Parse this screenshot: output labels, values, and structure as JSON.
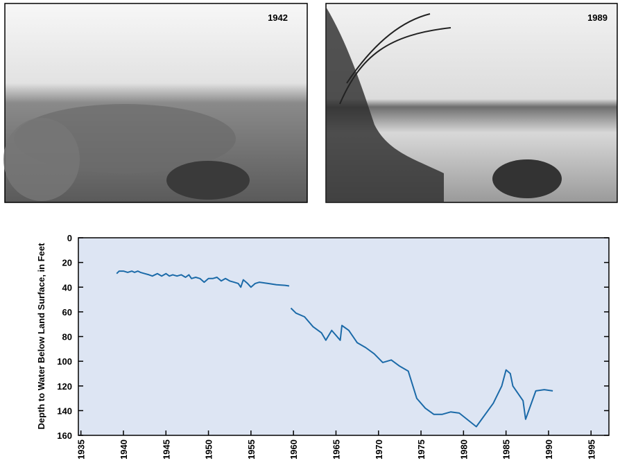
{
  "photos": [
    {
      "label": "1942"
    },
    {
      "label": "1989"
    }
  ],
  "chart_data": {
    "type": "line",
    "y_axis_label": "Depth to Water Below Land Surface, in Feet",
    "y_inverted": true,
    "xlim": [
      1934.7,
      1997.1
    ],
    "xticks": [
      1935,
      1940,
      1945,
      1950,
      1955,
      1960,
      1965,
      1970,
      1975,
      1980,
      1985,
      1990,
      1995
    ],
    "ylim": [
      0,
      160
    ],
    "yticks": [
      0,
      20,
      40,
      60,
      80,
      100,
      120,
      140,
      160
    ],
    "background": "#dde5f3",
    "series": [
      {
        "color": "#1b6aa8",
        "x": [
          1939.2,
          1939.5,
          1940,
          1940.5,
          1941,
          1941.3,
          1941.7,
          1942,
          1942.5,
          1943,
          1943.4,
          1944,
          1944.5,
          1945,
          1945.4,
          1945.8,
          1946.3,
          1946.8,
          1947.3,
          1947.7,
          1948,
          1948.5,
          1949,
          1949.5,
          1950,
          1950.5,
          1951,
          1951.5,
          1952,
          1952.5,
          1953,
          1953.5,
          1953.8,
          1954.1,
          1954.6,
          1955,
          1955.5,
          1956,
          1957,
          1958,
          1959,
          1959.5,
          1959.6,
          1959.7,
          1960.3,
          1961.3,
          1962.3,
          1963.3,
          1963.8,
          1964.5,
          1965.5,
          1965.7,
          1966.5,
          1967.5,
          1968.5,
          1969.5,
          1970.5,
          1971.5,
          1972.5,
          1973.5,
          1974.5,
          1975.5,
          1976.5,
          1977.5,
          1978.5,
          1979.5,
          1981.5,
          1983.5,
          1984.5,
          1985,
          1985.5,
          1985.8,
          1987,
          1987.3,
          1988.5,
          1989.5,
          1990.5
        ],
        "values": [
          29,
          27,
          27,
          28,
          27,
          28,
          27,
          28,
          29,
          30,
          31,
          29,
          31,
          29,
          31,
          30,
          31,
          30,
          32,
          30,
          33,
          32,
          33,
          36,
          33,
          33,
          32,
          35,
          33,
          35,
          36,
          37,
          40,
          34,
          37,
          40,
          37,
          36,
          37,
          38,
          38.5,
          39,
          null,
          57,
          61,
          64,
          72,
          77,
          83,
          75,
          83,
          71,
          75,
          85,
          89,
          94,
          101,
          99,
          104,
          108,
          130,
          138,
          143,
          143,
          141,
          142,
          153,
          134,
          120,
          107,
          110,
          120,
          132,
          147,
          124,
          123,
          124
        ]
      }
    ]
  }
}
